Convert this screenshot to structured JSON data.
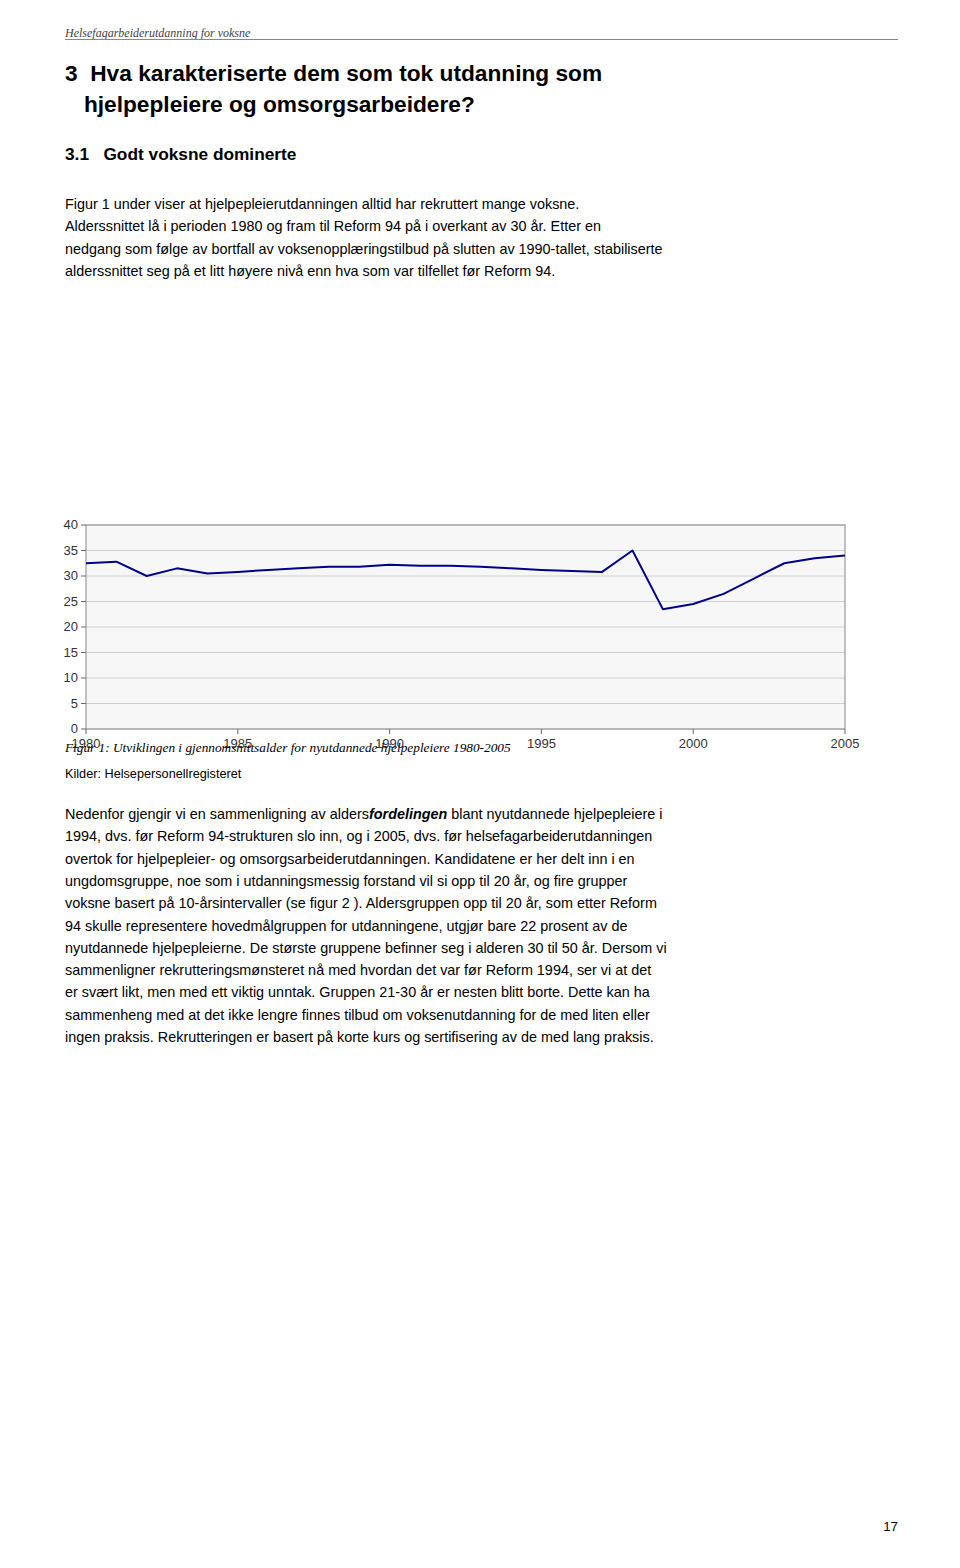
{
  "chart_data": {
    "type": "line",
    "title": "Figur 1: Utviklingen i gjennomsnittsalder for nyutdannede hjelpepleiere 1980-2005",
    "source": "Kilder: Helsepersonellregisteret",
    "x": [
      1980,
      1981,
      1982,
      1983,
      1984,
      1985,
      1986,
      1987,
      1988,
      1989,
      1990,
      1991,
      1992,
      1993,
      1994,
      1995,
      1996,
      1997,
      1998,
      1999,
      2000,
      2001,
      2002,
      2003,
      2004,
      2005
    ],
    "values": [
      32.5,
      32.8,
      30.0,
      31.5,
      30.5,
      30.8,
      31.2,
      31.5,
      31.8,
      31.8,
      32.2,
      32.0,
      32.0,
      31.8,
      31.5,
      31.2,
      31.0,
      30.8,
      35.0,
      23.5,
      24.5,
      26.5,
      29.5,
      32.5,
      33.5,
      34.0
    ],
    "color": "#00008B",
    "xlim": [
      1980,
      2005
    ],
    "xticks": [
      1980,
      1985,
      1990,
      1995,
      2000,
      2005
    ],
    "ylim": [
      0,
      40
    ],
    "yticks": [
      0,
      5,
      10,
      15,
      20,
      25,
      30,
      35,
      40
    ],
    "grid": true
  },
  "page_text": {
    "header": "Helsefagarbeiderutdanning for voksne",
    "chapter_title": [
      "3  Hva karakteriserte dem som tok utdanning som",
      "   hjelpepleiere og omsorgsarbeidere?"
    ],
    "section_title": "3.1   Godt voksne dominerte",
    "paragraph1": [
      "Figur 1 under viser at hjelpepleierutdanningen alltid har rekruttert mange voksne.",
      "Alderssnittet lå i perioden 1980 og fram til Reform 94 på i overkant av 30 år. Etter en",
      "nedgang som følge av bortfall av voksenopplæringstilbud på slutten av 1990-tallet, stabiliserte",
      "alderssnittet seg på et litt høyere nivå enn hva som var tilfellet før Reform 94."
    ],
    "paragraph2_first_line": [
      "Nedenfor gjengir vi en sammenligning av alders",
      "fordelingen",
      " blant nyutdannede hjelpepleiere i"
    ],
    "paragraph2": [
      "1994, dvs. før Reform 94-strukturen slo inn, og i 2005, dvs. før helsefagarbeiderutdanningen",
      "overtok for hjelpepleier- og omsorgsarbeiderutdanningen. Kandidatene er her delt inn i en",
      "ungdomsgruppe, noe som i utdanningsmessig forstand vil si opp til 20 år, og fire grupper",
      "voksne basert på 10-årsintervaller (se figur 2 ). Aldersgruppen opp til 20 år, som etter Reform",
      "94 skulle representere hovedmålgruppen for utdanningene, utgjør bare 22 prosent av de",
      "nyutdannede hjelpepleierne. De største gruppene befinner seg i alderen 30 til 50 år. Dersom vi",
      "sammenligner rekrutteringsmønsteret nå med hvordan det var før Reform 1994, ser vi at det",
      "er svært likt, men med ett viktig unntak. Gruppen 21-30 år er nesten blitt borte. Dette kan ha",
      "sammenheng med at det ikke lengre finnes tilbud om voksenutdanning for de med liten eller",
      "ingen praksis. Rekrutteringen er basert på korte kurs og sertifisering av de med lang praksis."
    ],
    "page_number": "17"
  }
}
